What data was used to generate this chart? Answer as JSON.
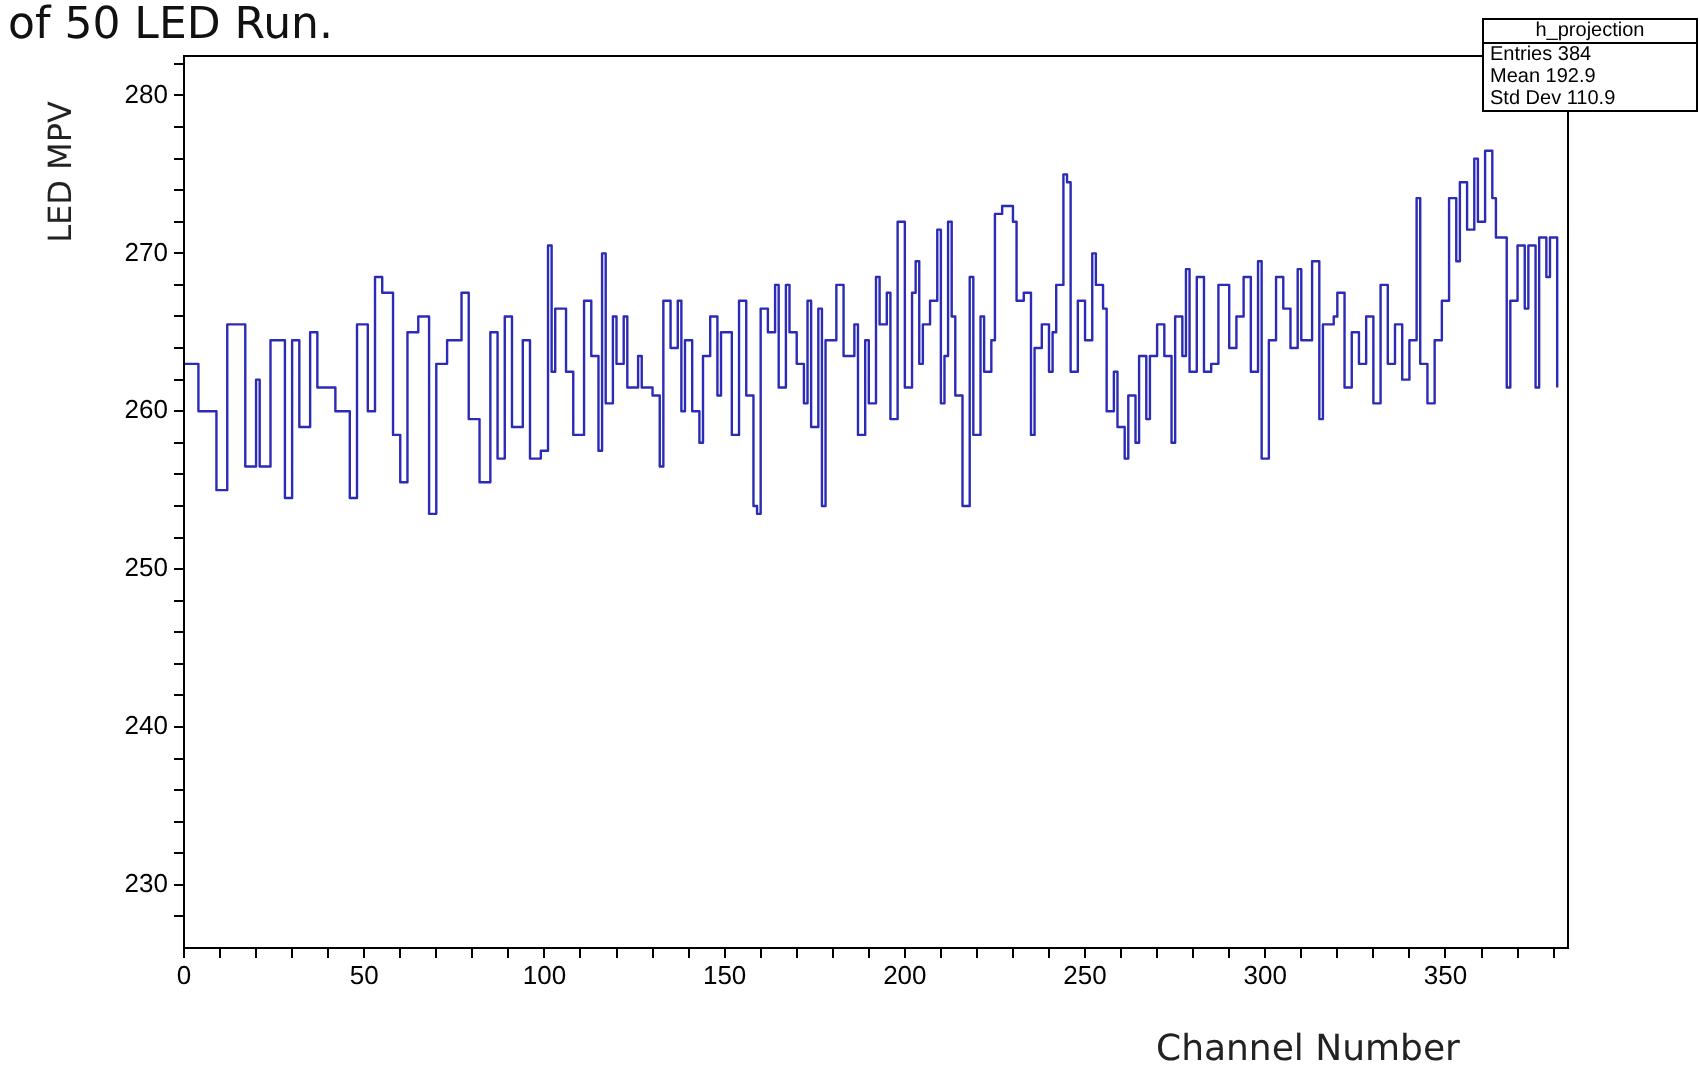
{
  "chart_data": {
    "type": "step",
    "title": "of 50 LED Run.",
    "xlabel": "Channel Number",
    "ylabel": "LED MPV",
    "annotations": [
      "h_projection",
      "Entries 384",
      "Mean 192.9",
      "Std Dev 110.9"
    ],
    "x": [
      0,
      4,
      9,
      12,
      17,
      20,
      21,
      24,
      28,
      30,
      32,
      35,
      37,
      42,
      46,
      48,
      51,
      53,
      55,
      58,
      60,
      62,
      65,
      68,
      70,
      73,
      77,
      79,
      82,
      85,
      87,
      89,
      91,
      94,
      96,
      99,
      101,
      102,
      103,
      106,
      108,
      111,
      113,
      115,
      116,
      117,
      119,
      120,
      122,
      123,
      126,
      127,
      130,
      132,
      133,
      135,
      137,
      138,
      139,
      141,
      143,
      144,
      146,
      148,
      149,
      152,
      154,
      156,
      158,
      159,
      160,
      162,
      164,
      165,
      167,
      168,
      170,
      172,
      173,
      174,
      176,
      177,
      178,
      181,
      182,
      183,
      186,
      187,
      189,
      190,
      192,
      193,
      195,
      196,
      198,
      200,
      202,
      203,
      204,
      205,
      207,
      209,
      210,
      211,
      212,
      213,
      214,
      216,
      218,
      219,
      221,
      222,
      224,
      225,
      227,
      230,
      231,
      233,
      235,
      236,
      238,
      240,
      241,
      242,
      244,
      245,
      246,
      248,
      250,
      252,
      253,
      255,
      256,
      258,
      259,
      261,
      262,
      264,
      265,
      267,
      268,
      270,
      272,
      274,
      275,
      277,
      278,
      279,
      281,
      283,
      285,
      287,
      290,
      292,
      294,
      296,
      298,
      299,
      301,
      303,
      305,
      307,
      309,
      310,
      313,
      315,
      316,
      319,
      320,
      322,
      324,
      326,
      328,
      330,
      332,
      334,
      336,
      338,
      340,
      342,
      343,
      345,
      347,
      349,
      351,
      353,
      354,
      356,
      358,
      359,
      361,
      363,
      364,
      367,
      368,
      370,
      372,
      373,
      375,
      376,
      378,
      379,
      381
    ],
    "series": [
      {
        "color": "#2b2bb5",
        "values": [
          263,
          260,
          255,
          265.5,
          256.5,
          262,
          256.5,
          264.5,
          254.5,
          264.5,
          259,
          265,
          261.5,
          260,
          254.5,
          265.5,
          260,
          268.5,
          267.5,
          258.5,
          255.5,
          265,
          266,
          253.5,
          263,
          264.5,
          267.5,
          259.5,
          255.5,
          265,
          257,
          266,
          259,
          264.5,
          257,
          257.5,
          270.5,
          262.5,
          266.5,
          262.5,
          258.5,
          267,
          263.5,
          257.5,
          270,
          260.5,
          266,
          263,
          266,
          261.5,
          263.5,
          261.5,
          261,
          256.5,
          267,
          264,
          267,
          260,
          264.5,
          260,
          258,
          263.5,
          266,
          261,
          265,
          258.5,
          267,
          261,
          254,
          253.5,
          266.5,
          265,
          268,
          261.5,
          268,
          265,
          263,
          260.5,
          267,
          259,
          266.5,
          254,
          264.5,
          268,
          268,
          263.5,
          265.5,
          258.5,
          264.5,
          260.5,
          268.5,
          265.5,
          267.5,
          259.5,
          272,
          261.5,
          267.5,
          269.5,
          263,
          265.5,
          267,
          271.5,
          260.5,
          263.5,
          272,
          266,
          261,
          254,
          268.5,
          258.5,
          266,
          262.5,
          264.5,
          272.5,
          273,
          272,
          267,
          267.5,
          258.5,
          264,
          265.5,
          262.5,
          265,
          268,
          275,
          274.5,
          262.5,
          267,
          264.5,
          270,
          268,
          266.5,
          260,
          262.5,
          259,
          257,
          261,
          258,
          263.5,
          259.5,
          263.5,
          265.5,
          263.5,
          258,
          266,
          263.5,
          269,
          262.5,
          268.5,
          262.5,
          263,
          268,
          264,
          266,
          268.5,
          262.5,
          269.5,
          257,
          264.5,
          268.5,
          266.5,
          264,
          269,
          264.5,
          269.5,
          259.5,
          265.5,
          266,
          267.5,
          261.5,
          265,
          263,
          266,
          260.5,
          268,
          263,
          265.5,
          262,
          264.5,
          273.5,
          263,
          260.5,
          264.5,
          267,
          273.5,
          269.5,
          274.5,
          271.5,
          276,
          272,
          276.5,
          273.5,
          271,
          261.5,
          267,
          270.5,
          266.5,
          270.5,
          261.5,
          271,
          268.5,
          271,
          261.5
        ]
      }
    ],
    "xlim": [
      0,
      384
    ],
    "ylim": [
      226,
      282.5
    ],
    "xticks": [
      0,
      {
        "value": 10,
        "label": null
      },
      {
        "value": 20,
        "label": null
      },
      {
        "value": 30,
        "label": null
      },
      {
        "value": 40,
        "label": null
      },
      50,
      {
        "value": 60,
        "label": null
      },
      {
        "value": 70,
        "label": null
      },
      {
        "value": 80,
        "label": null
      },
      {
        "value": 90,
        "label": null
      },
      100,
      {
        "value": 110,
        "label": null
      },
      {
        "value": 120,
        "label": null
      },
      {
        "value": 130,
        "label": null
      },
      {
        "value": 140,
        "label": null
      },
      150,
      {
        "value": 160,
        "label": null
      },
      {
        "value": 170,
        "label": null
      },
      {
        "value": 180,
        "label": null
      },
      {
        "value": 190,
        "label": null
      },
      200,
      {
        "value": 210,
        "label": null
      },
      {
        "value": 220,
        "label": null
      },
      {
        "value": 230,
        "label": null
      },
      {
        "value": 240,
        "label": null
      },
      250,
      {
        "value": 260,
        "label": null
      },
      {
        "value": 270,
        "label": null
      },
      {
        "value": 280,
        "label": null
      },
      {
        "value": 290,
        "label": null
      },
      300,
      {
        "value": 310,
        "label": null
      },
      {
        "value": 320,
        "label": null
      },
      {
        "value": 330,
        "label": null
      },
      {
        "value": 340,
        "label": null
      },
      350,
      {
        "value": 360,
        "label": null
      },
      {
        "value": 370,
        "label": null
      },
      {
        "value": 380,
        "label": null
      }
    ],
    "yticks": [
      {
        "value": 228,
        "label": null
      },
      230,
      {
        "value": 232,
        "label": null
      },
      {
        "value": 234,
        "label": null
      },
      {
        "value": 236,
        "label": null
      },
      {
        "value": 238,
        "label": null
      },
      240,
      {
        "value": 242,
        "label": null
      },
      {
        "value": 244,
        "label": null
      },
      {
        "value": 246,
        "label": null
      },
      {
        "value": 248,
        "label": null
      },
      250,
      {
        "value": 252,
        "label": null
      },
      {
        "value": 254,
        "label": null
      },
      {
        "value": 256,
        "label": null
      },
      {
        "value": 258,
        "label": null
      },
      260,
      {
        "value": 262,
        "label": null
      },
      {
        "value": 264,
        "label": null
      },
      {
        "value": 266,
        "label": null
      },
      {
        "value": 268,
        "label": null
      },
      270,
      {
        "value": 272,
        "label": null
      },
      {
        "value": 274,
        "label": null
      },
      {
        "value": 276,
        "label": null
      },
      {
        "value": 278,
        "label": null
      },
      280,
      {
        "value": 282,
        "label": null
      }
    ],
    "grid": false,
    "legend": false,
    "marker": "none",
    "line_style": "solid"
  }
}
